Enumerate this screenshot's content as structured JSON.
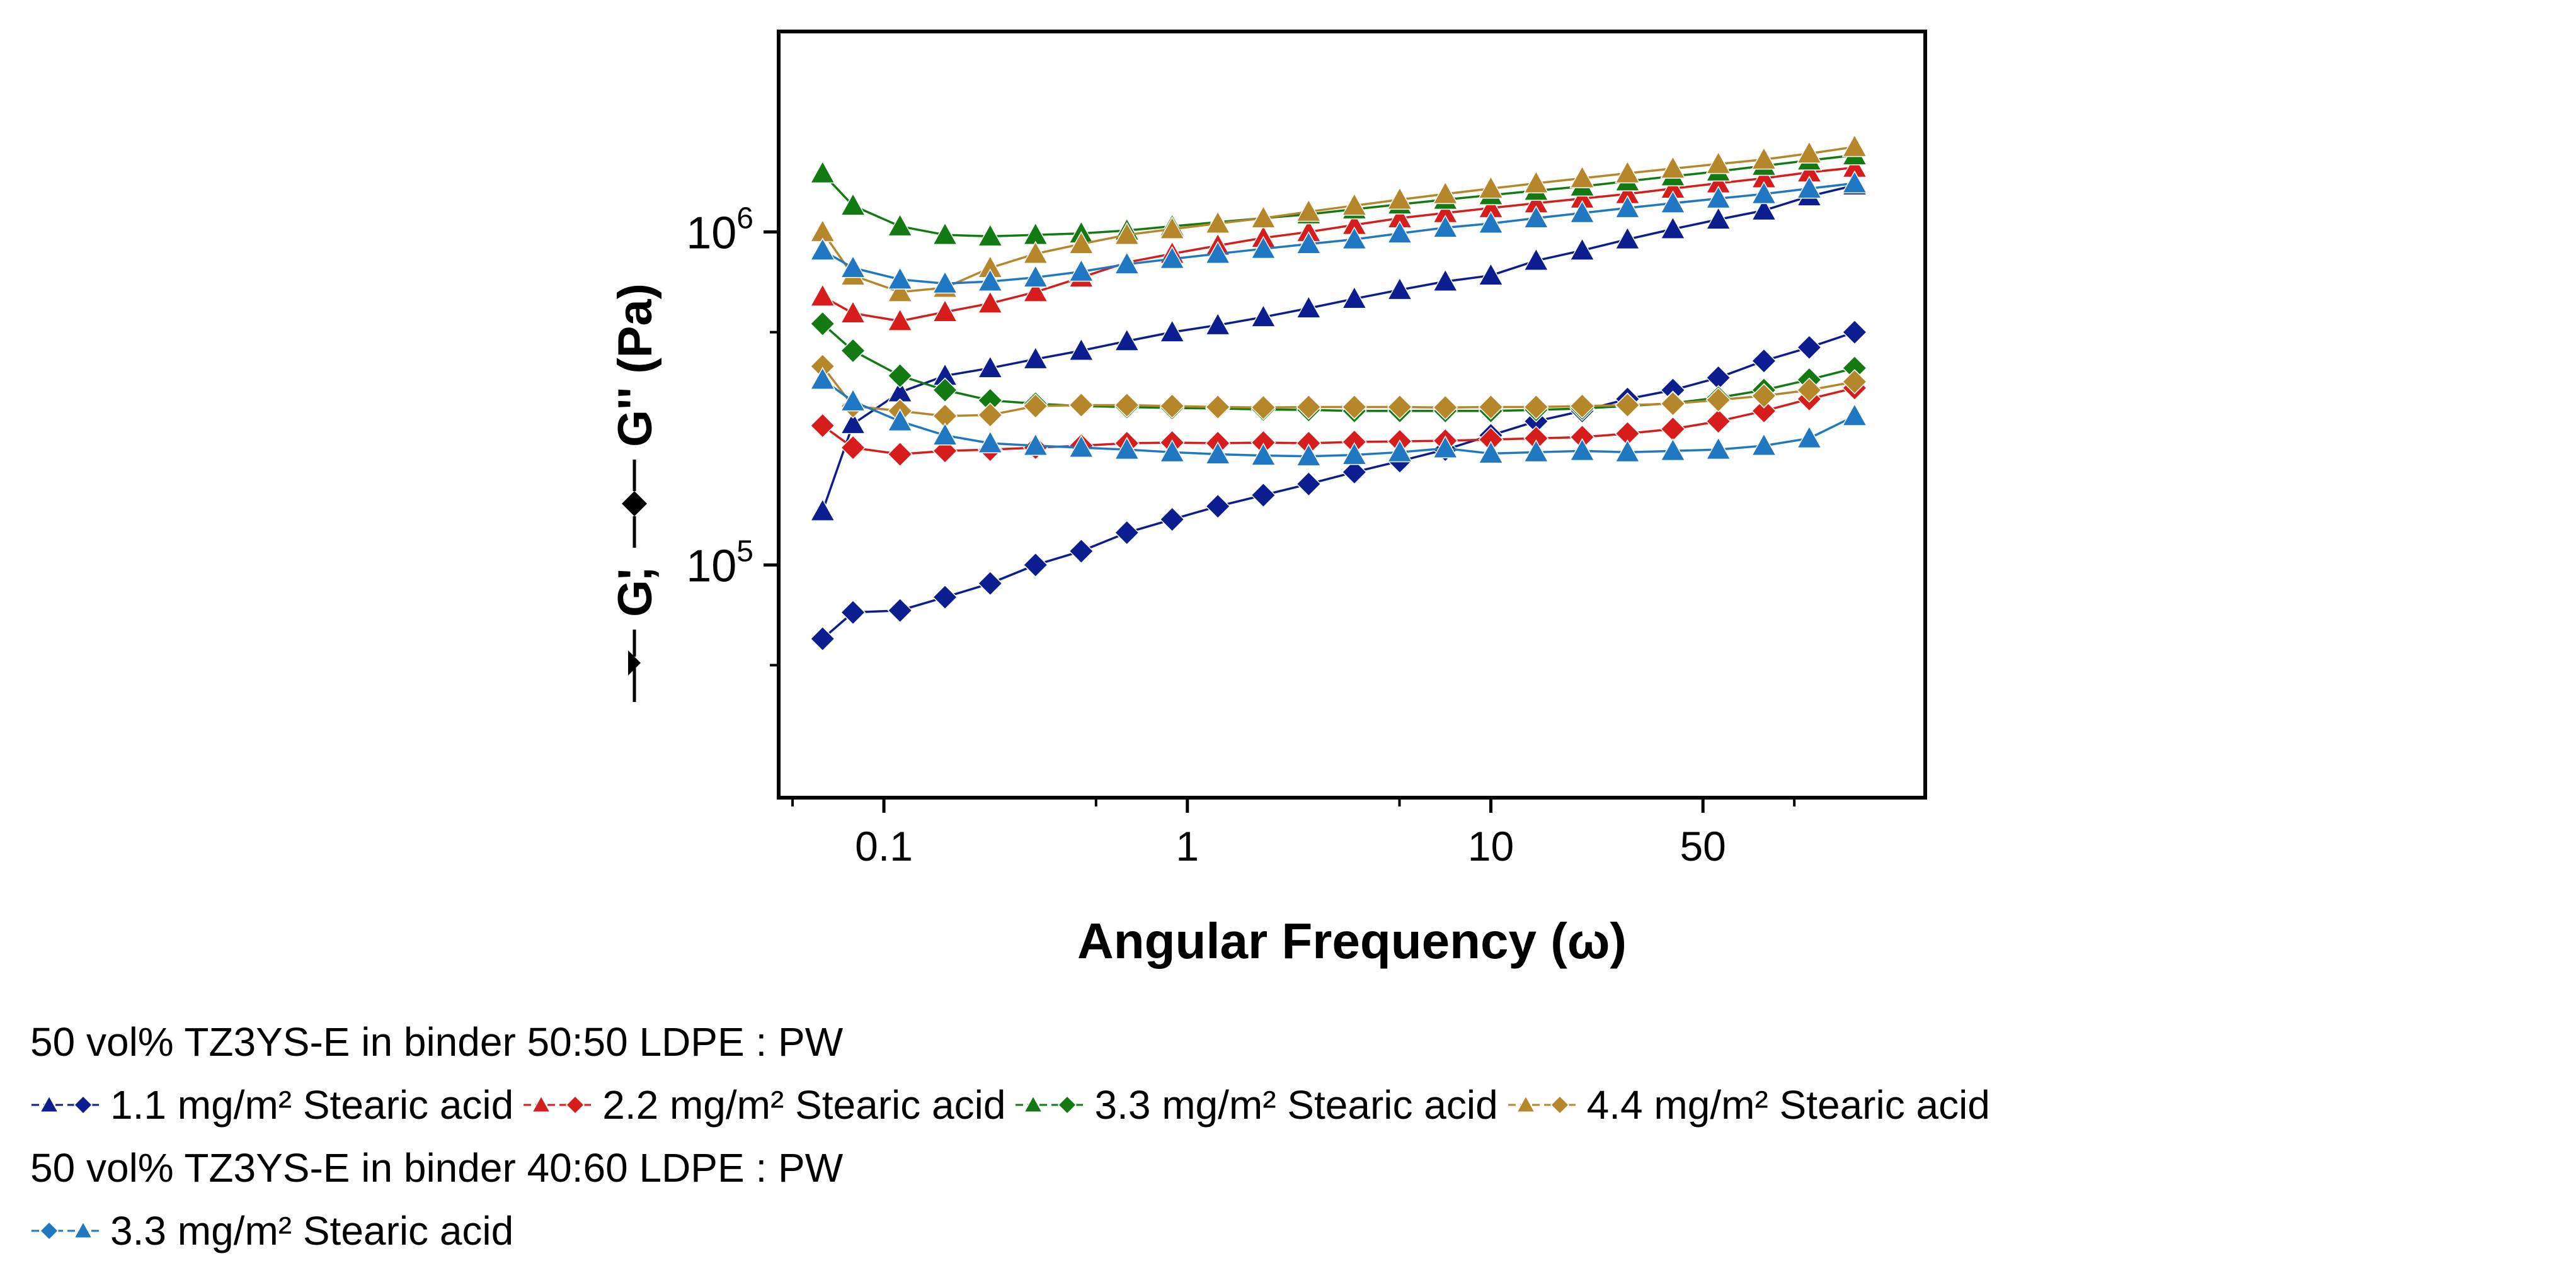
{
  "chart_data": {
    "type": "line",
    "xscale": "log",
    "yscale": "log",
    "xlim": [
      0.045,
      270
    ],
    "ylim": [
      20000,
      4000000
    ],
    "xlabel": "Angular Frequency (ω)",
    "ylabel": {
      "g1": "G'",
      "comma": ",",
      "g2": "G'' (Pa)"
    },
    "xticks": [
      {
        "value": 0.1,
        "label": "0.1"
      },
      {
        "value": 1,
        "label": "1"
      },
      {
        "value": 10,
        "label": "10"
      },
      {
        "value": 50,
        "label": "50"
      }
    ],
    "yticks": [
      {
        "value": 100000,
        "base": "10",
        "exp": "5"
      },
      {
        "value": 1000000,
        "base": "10",
        "exp": "6"
      }
    ],
    "x": [
      0.0628,
      0.0791,
      0.113,
      0.159,
      0.224,
      0.316,
      0.447,
      0.632,
      0.891,
      1.26,
      1.78,
      2.51,
      3.55,
      5.01,
      7.08,
      10,
      14.1,
      20,
      28.2,
      39.8,
      56.2,
      79.4,
      112,
      158
    ],
    "series": [
      {
        "name": "1.1 mg/m² Stearic acid — G'",
        "group": "s1",
        "modulus": "G'",
        "marker": "triangle",
        "color": "#0b1d8f",
        "values": [
          145000,
          265000,
          330000,
          370000,
          390000,
          415000,
          440000,
          470000,
          500000,
          525000,
          555000,
          590000,
          630000,
          670000,
          710000,
          740000,
          820000,
          880000,
          950000,
          1020000,
          1090000,
          1160000,
          1280000,
          1380000
        ]
      },
      {
        "name": "1.1 mg/m² Stearic acid — G''",
        "group": "s1",
        "modulus": "G''",
        "marker": "diamond",
        "color": "#0b1d8f",
        "values": [
          60000,
          72000,
          73000,
          80000,
          88000,
          100000,
          110000,
          125000,
          137000,
          150000,
          162000,
          175000,
          190000,
          205000,
          222000,
          245000,
          270000,
          290000,
          315000,
          335000,
          365000,
          410000,
          450000,
          500000
        ]
      },
      {
        "name": "2.2 mg/m² Stearic acid — G'",
        "group": "s2",
        "modulus": "G'",
        "marker": "triangle",
        "color": "#d71c1c",
        "values": [
          640000,
          570000,
          540000,
          575000,
          610000,
          660000,
          730000,
          810000,
          860000,
          910000,
          960000,
          1000000,
          1050000,
          1100000,
          1140000,
          1180000,
          1220000,
          1260000,
          1300000,
          1350000,
          1400000,
          1450000,
          1510000,
          1560000
        ]
      },
      {
        "name": "2.2 mg/m² Stearic acid — G''",
        "group": "s2",
        "modulus": "G''",
        "marker": "diamond",
        "color": "#d71c1c",
        "values": [
          262000,
          225000,
          215000,
          220000,
          222000,
          225000,
          228000,
          232000,
          233000,
          232000,
          233000,
          232000,
          234000,
          235000,
          236000,
          238000,
          240000,
          242000,
          248000,
          256000,
          270000,
          290000,
          315000,
          340000
        ]
      },
      {
        "name": "3.3 mg/m² Stearic acid — G'",
        "group": "s3",
        "modulus": "G'",
        "marker": "triangle",
        "color": "#137a13",
        "values": [
          1500000,
          1200000,
          1040000,
          980000,
          970000,
          980000,
          990000,
          1010000,
          1040000,
          1070000,
          1100000,
          1130000,
          1170000,
          1210000,
          1250000,
          1290000,
          1330000,
          1370000,
          1420000,
          1470000,
          1520000,
          1580000,
          1640000,
          1700000
        ]
      },
      {
        "name": "3.3 mg/m² Stearic acid — G''",
        "group": "s3",
        "modulus": "G''",
        "marker": "diamond",
        "color": "#137a13",
        "values": [
          530000,
          440000,
          370000,
          335000,
          312000,
          305000,
          300000,
          298000,
          296000,
          295000,
          293000,
          292000,
          290000,
          290000,
          290000,
          290000,
          292000,
          295000,
          300000,
          306000,
          318000,
          335000,
          360000,
          390000
        ]
      },
      {
        "name": "4.4 mg/m² Stearic acid — G'",
        "group": "s4",
        "modulus": "G'",
        "marker": "triangle",
        "color": "#b5872a",
        "values": [
          1000000,
          740000,
          660000,
          680000,
          780000,
          860000,
          920000,
          980000,
          1020000,
          1060000,
          1100000,
          1150000,
          1200000,
          1250000,
          1300000,
          1350000,
          1400000,
          1450000,
          1500000,
          1550000,
          1600000,
          1650000,
          1720000,
          1800000
        ]
      },
      {
        "name": "4.4 mg/m² Stearic acid — G''",
        "group": "s4",
        "modulus": "G''",
        "marker": "diamond",
        "color": "#b5872a",
        "values": [
          395000,
          300000,
          290000,
          280000,
          282000,
          300000,
          302000,
          302000,
          300000,
          298000,
          297000,
          298000,
          298000,
          298000,
          297000,
          298000,
          298000,
          300000,
          302000,
          305000,
          313000,
          322000,
          335000,
          355000
        ]
      },
      {
        "name": "3.3 mg/m² Stearic acid (40:60) — G'",
        "group": "s5",
        "modulus": "G'",
        "marker": "triangle",
        "color": "#1f78c1",
        "values": [
          880000,
          780000,
          720000,
          700000,
          710000,
          730000,
          760000,
          800000,
          830000,
          860000,
          890000,
          920000,
          950000,
          990000,
          1030000,
          1060000,
          1100000,
          1140000,
          1180000,
          1220000,
          1260000,
          1300000,
          1350000,
          1400000
        ]
      },
      {
        "name": "3.3 mg/m² Stearic acid (40:60) — G''",
        "group": "s5",
        "modulus": "G''",
        "marker": "triangle",
        "color": "#1f78c1",
        "values": [
          360000,
          310000,
          270000,
          245000,
          232000,
          228000,
          225000,
          222000,
          218000,
          215000,
          213000,
          212000,
          214000,
          218000,
          224000,
          216000,
          218000,
          220000,
          218000,
          220000,
          222000,
          228000,
          240000,
          280000
        ]
      }
    ]
  },
  "legend": {
    "group1_title": "50 vol% TZ3YS-E in binder 50:50 LDPE : PW",
    "group2_title": "50 vol% TZ3YS-E in binder 40:60 LDPE : PW",
    "entries": [
      {
        "label": "1.1 mg/m² Stearic acid",
        "color": "#0b1d8f",
        "first_marker": "triangle",
        "second_marker": "diamond"
      },
      {
        "label": "2.2 mg/m² Stearic acid",
        "color": "#d71c1c",
        "first_marker": "triangle",
        "second_marker": "diamond"
      },
      {
        "label": "3.3 mg/m² Stearic acid",
        "color": "#137a13",
        "first_marker": "triangle",
        "second_marker": "diamond"
      },
      {
        "label": "4.4 mg/m² Stearic acid",
        "color": "#b5872a",
        "first_marker": "triangle",
        "second_marker": "diamond"
      },
      {
        "label": "3.3 mg/m² Stearic acid",
        "color": "#1f78c1",
        "first_marker": "diamond",
        "second_marker": "triangle"
      }
    ]
  }
}
